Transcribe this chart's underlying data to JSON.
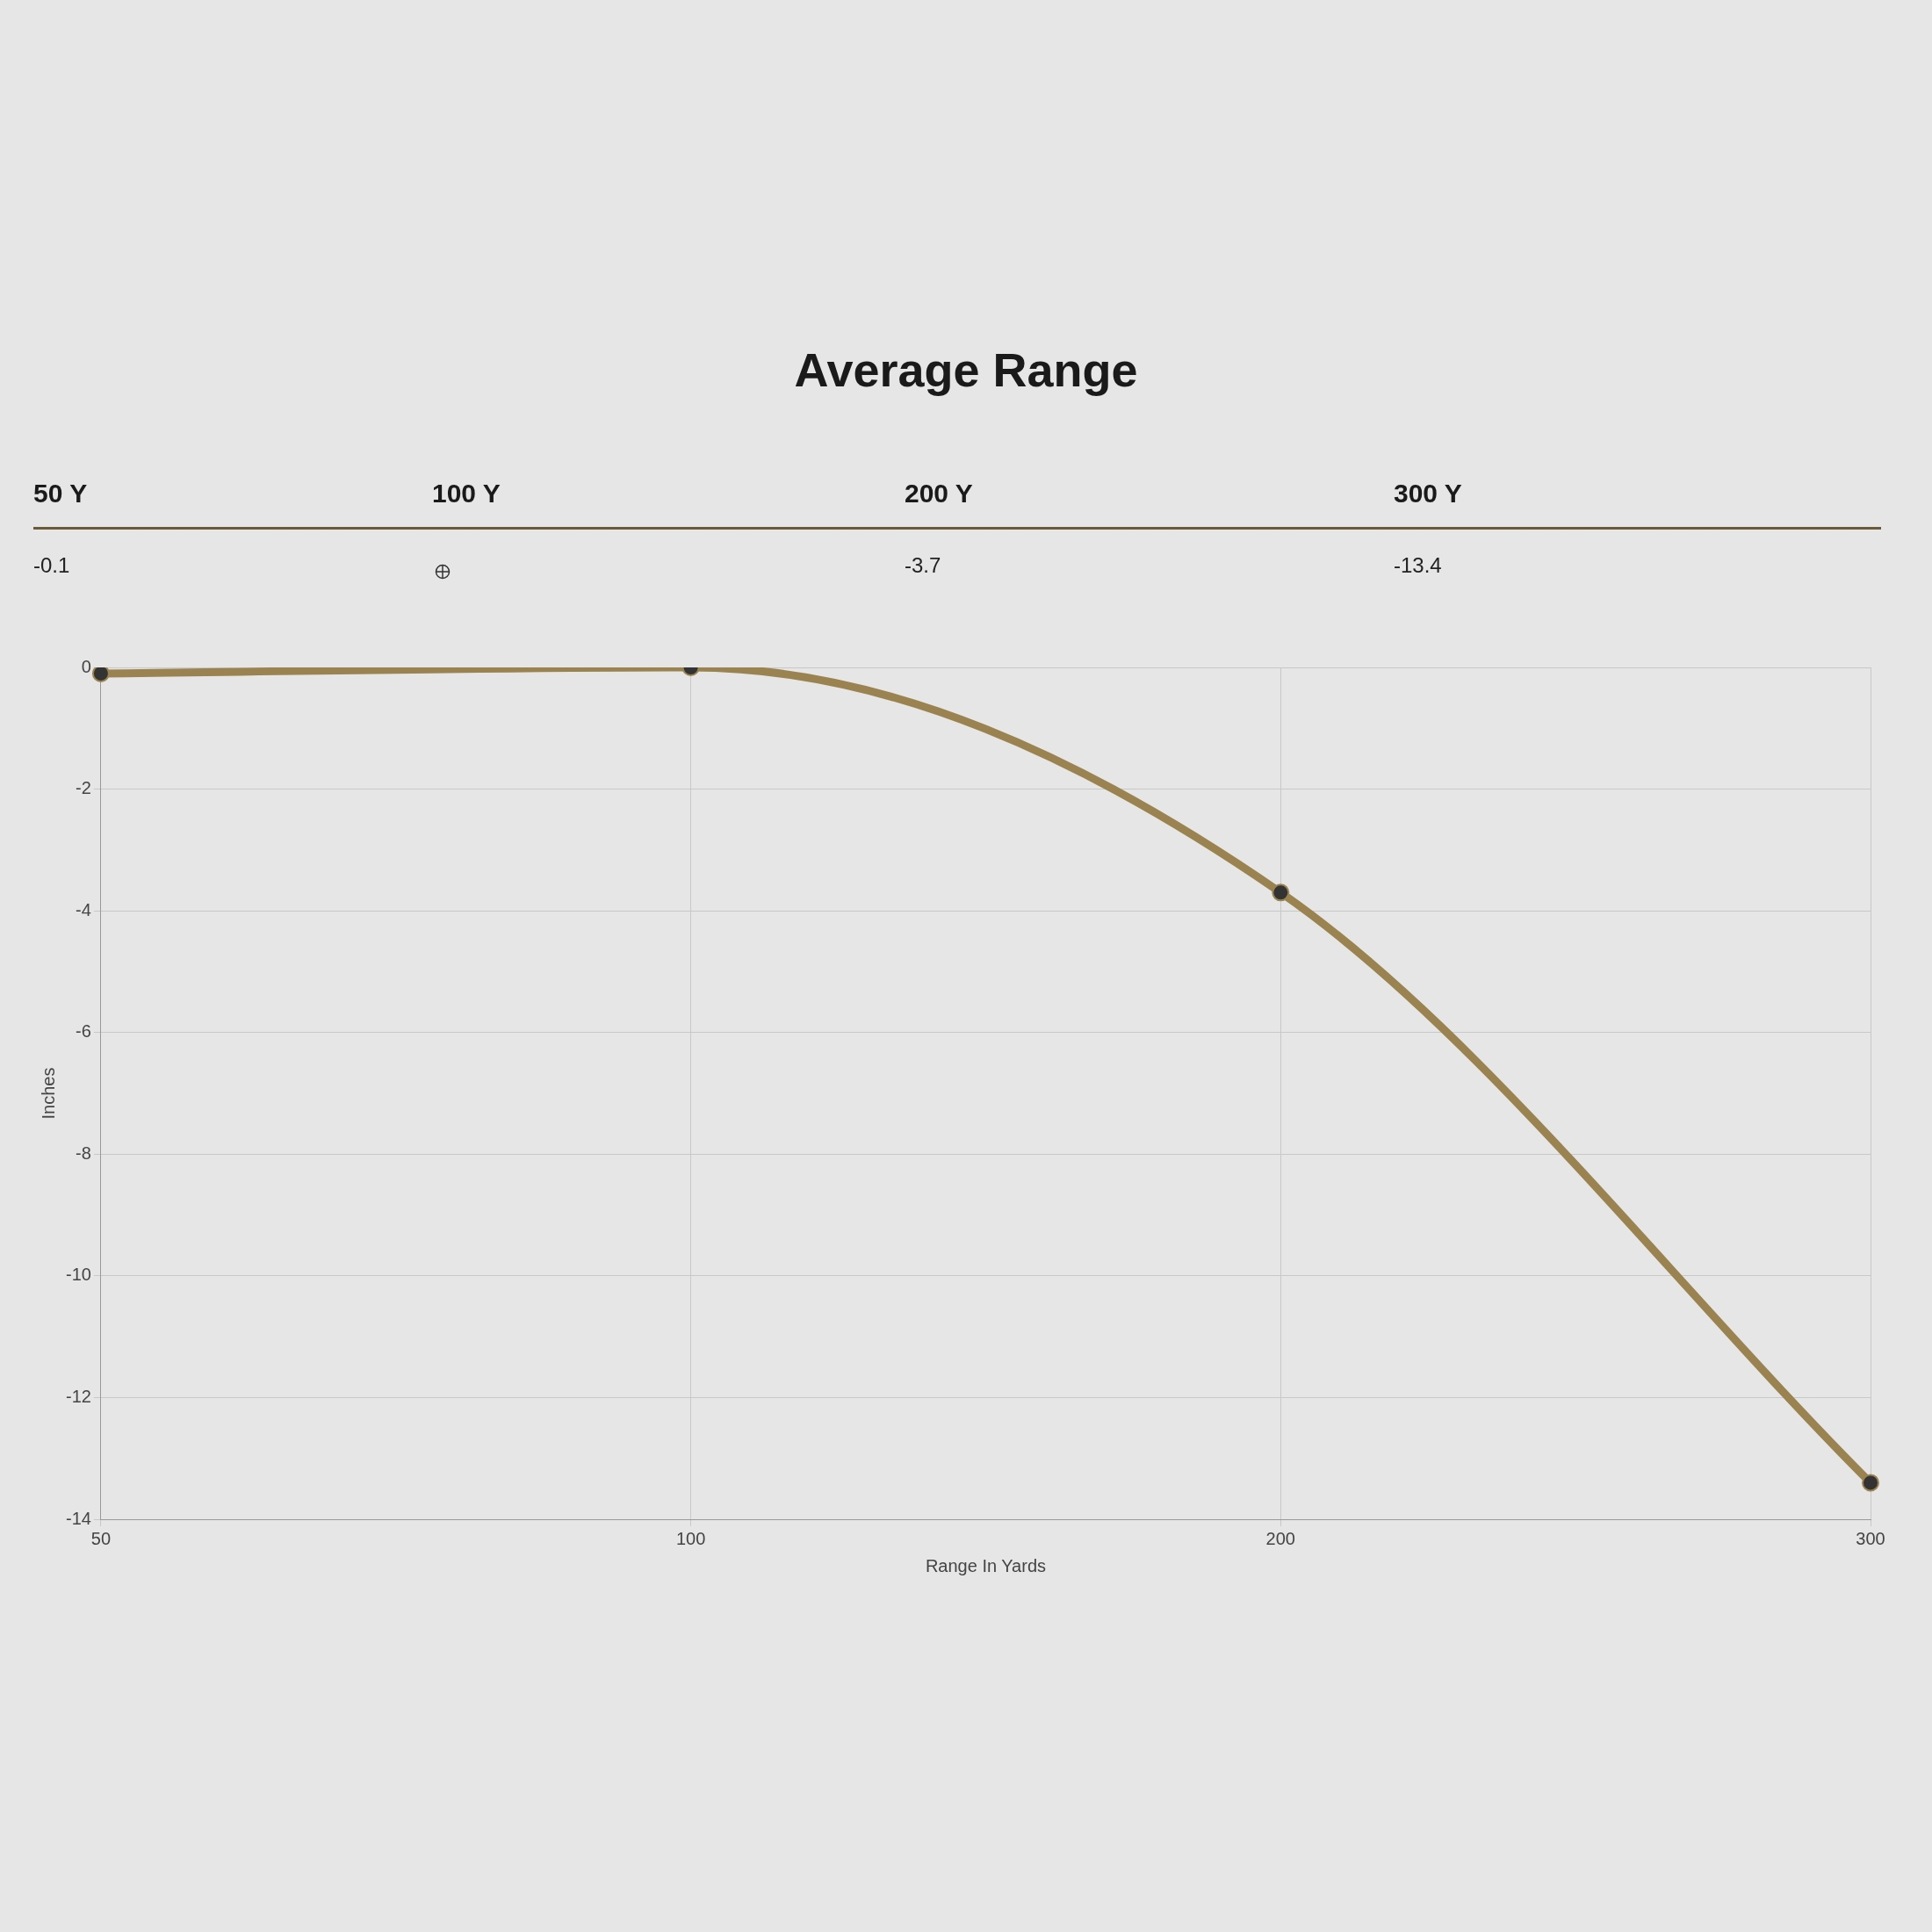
{
  "chart_data": {
    "type": "line",
    "title": "Average Range",
    "xlabel": "Range In Yards",
    "ylabel": "Inches",
    "categories": [
      "50",
      "100",
      "200",
      "300"
    ],
    "series": [
      {
        "color": "#9a8350",
        "values": [
          -0.1,
          0,
          -3.7,
          -13.4
        ]
      }
    ],
    "value_labels": [
      "-0.1",
      null,
      "-3.7",
      "-13.4"
    ],
    "annotations": [
      "50 Y",
      "100 Y",
      "200 Y",
      "300 Y"
    ],
    "ylim": [
      -14,
      0
    ],
    "yticks": [
      -14,
      -12,
      -10,
      -8,
      -6,
      -4,
      -2,
      0
    ],
    "grid": true,
    "legend": false,
    "marker": "circle",
    "line_style": "solid"
  }
}
